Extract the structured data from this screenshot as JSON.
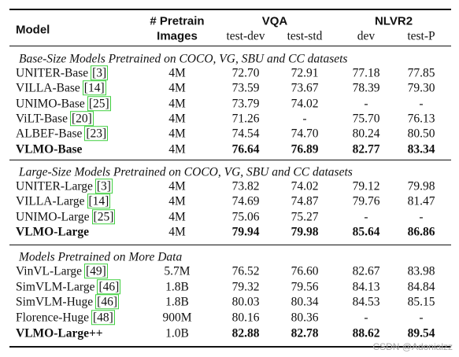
{
  "header": {
    "model": "Model",
    "pretrain": [
      "# Pretrain",
      "Images"
    ],
    "vqa": "VQA",
    "nlvr2": "NLVR2",
    "subcolumns": [
      "test-dev",
      "test-std",
      "dev",
      "test-P"
    ]
  },
  "sections": [
    {
      "title": "Base-Size Models Pretrained on COCO, VG, SBU and CC datasets",
      "rows": [
        {
          "model": "UNITER-Base",
          "cite": "[3]",
          "bold": false,
          "cells": [
            "4M",
            "72.70",
            "72.91",
            "77.18",
            "77.85"
          ]
        },
        {
          "model": "VILLA-Base",
          "cite": "[14]",
          "bold": false,
          "cells": [
            "4M",
            "73.59",
            "73.67",
            "78.39",
            "79.30"
          ]
        },
        {
          "model": "UNIMO-Base",
          "cite": "[25]",
          "bold": false,
          "cells": [
            "4M",
            "73.79",
            "74.02",
            "-",
            "-"
          ]
        },
        {
          "model": "ViLT-Base",
          "cite": "[20]",
          "bold": false,
          "cells": [
            "4M",
            "71.26",
            "-",
            "75.70",
            "76.13"
          ]
        },
        {
          "model": "ALBEF-Base",
          "cite": "[23]",
          "bold": false,
          "cells": [
            "4M",
            "74.54",
            "74.70",
            "80.24",
            "80.50"
          ]
        },
        {
          "model": "VLMO-Base",
          "cite": null,
          "bold": true,
          "cells": [
            "4M",
            "76.64",
            "76.89",
            "82.77",
            "83.34"
          ]
        }
      ]
    },
    {
      "title": "Large-Size Models Pretrained on COCO, VG, SBU and CC datasets",
      "rows": [
        {
          "model": "UNITER-Large",
          "cite": "[3]",
          "bold": false,
          "cells": [
            "4M",
            "73.82",
            "74.02",
            "79.12",
            "79.98"
          ]
        },
        {
          "model": "VILLA-Large",
          "cite": "[14]",
          "bold": false,
          "cells": [
            "4M",
            "74.69",
            "74.87",
            "79.76",
            "81.47"
          ]
        },
        {
          "model": "UNIMO-Large",
          "cite": "[25]",
          "bold": false,
          "cells": [
            "4M",
            "75.06",
            "75.27",
            "-",
            "-"
          ]
        },
        {
          "model": "VLMO-Large",
          "cite": null,
          "bold": true,
          "cells": [
            "4M",
            "79.94",
            "79.98",
            "85.64",
            "86.86"
          ]
        }
      ]
    },
    {
      "title": "Models Pretrained on More Data",
      "rows": [
        {
          "model": "VinVL-Large",
          "cite": "[49]",
          "bold": false,
          "cells": [
            "5.7M",
            "76.52",
            "76.60",
            "82.67",
            "83.98"
          ]
        },
        {
          "model": "SimVLM-Large",
          "cite": "[46]",
          "bold": false,
          "cells": [
            "1.8B",
            "79.32",
            "79.56",
            "84.13",
            "84.84"
          ]
        },
        {
          "model": "SimVLM-Huge",
          "cite": "[46]",
          "bold": false,
          "cells": [
            "1.8B",
            "80.03",
            "80.34",
            "84.53",
            "85.15"
          ]
        },
        {
          "model": "Florence-Huge",
          "cite": "[48]",
          "bold": false,
          "cells": [
            "900M",
            "80.16",
            "80.36",
            "-",
            "-"
          ]
        },
        {
          "model": "VLMO-Large++",
          "cite": null,
          "bold": true,
          "cells": [
            "1.0B",
            "82.88",
            "82.78",
            "88.62",
            "89.54"
          ]
        }
      ]
    }
  ],
  "watermark": "CSDN @Adonialzz"
}
